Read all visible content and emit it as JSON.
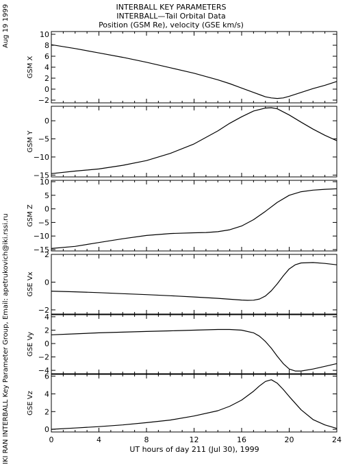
{
  "header": {
    "line1": "INTERBALL KEY PARAMETERS",
    "line2": "INTERBALL—Tail Orbital Data",
    "line3": "Position (GSM Re), velocity (GSE km/s)"
  },
  "side": {
    "date": "Aug 19 1999",
    "credit": "IKI RAN INTERBALL Key Parameter Group, Email: apetrukovich@iki.rssi.ru"
  },
  "chart_data": {
    "type": "line",
    "x_label": "UT hours of day 211 (Jul 30), 1999",
    "x_range": [
      0,
      24
    ],
    "x_ticks": [
      0,
      4,
      8,
      12,
      16,
      20,
      24
    ],
    "x_ticks_labels": [
      "0",
      "4",
      "8",
      "12",
      "16",
      "20",
      "24"
    ],
    "grid": false,
    "panels": [
      {
        "name": "gsm-x",
        "ylabel": "GSM X",
        "ylim": [
          -2.5,
          10.5
        ],
        "yticks": [
          -2,
          0,
          2,
          4,
          6,
          8,
          10
        ],
        "ytick_labels": [
          "−2",
          "0",
          "2",
          "4",
          "6",
          "8",
          "10"
        ],
        "x": [
          0,
          2,
          4,
          6,
          8,
          10,
          12,
          14,
          15,
          16,
          17,
          18,
          18.5,
          19,
          19.5,
          20,
          21,
          22,
          23,
          24
        ],
        "y": [
          8.1,
          7.4,
          6.6,
          5.8,
          4.9,
          3.9,
          2.9,
          1.7,
          1.0,
          0.2,
          -0.6,
          -1.4,
          -1.6,
          -1.7,
          -1.6,
          -1.3,
          -0.6,
          0.1,
          0.7,
          1.4
        ]
      },
      {
        "name": "gsm-y",
        "ylabel": "GSM Y",
        "ylim": [
          -15.5,
          4
        ],
        "yticks": [
          -15,
          -10,
          -5,
          0
        ],
        "ytick_labels": [
          "−15",
          "−10",
          "−5",
          "0"
        ],
        "x": [
          0,
          2,
          4,
          6,
          8,
          10,
          12,
          14,
          15,
          16,
          17,
          18,
          18.5,
          19,
          20,
          21,
          22,
          23,
          24
        ],
        "y": [
          -14.6,
          -13.9,
          -13.3,
          -12.3,
          -11.0,
          -9.0,
          -6.4,
          -2.8,
          -0.7,
          1.1,
          2.7,
          3.5,
          3.6,
          3.3,
          1.6,
          -0.4,
          -2.3,
          -4.0,
          -5.5
        ]
      },
      {
        "name": "gsm-z",
        "ylabel": "GSM Z",
        "ylim": [
          -15.5,
          10.5
        ],
        "yticks": [
          -15,
          -10,
          -5,
          0,
          5,
          10
        ],
        "ytick_labels": [
          "−15",
          "−10",
          "−5",
          "0",
          "5",
          "10"
        ],
        "x": [
          0,
          2,
          4,
          6,
          8,
          10,
          12,
          13,
          14,
          15,
          16,
          17,
          18,
          19,
          20,
          21,
          22,
          23,
          24
        ],
        "y": [
          -14.6,
          -13.8,
          -12.4,
          -11.0,
          -9.8,
          -9.1,
          -8.8,
          -8.7,
          -8.4,
          -7.7,
          -6.3,
          -4.0,
          -0.9,
          2.4,
          5.0,
          6.3,
          6.9,
          7.2,
          7.4
        ]
      },
      {
        "name": "gse-vx",
        "ylabel": "GSE Vx",
        "ylim": [
          -2.3,
          2.0
        ],
        "yticks": [
          -2,
          0,
          2
        ],
        "ytick_labels": [
          "−2",
          "0",
          "2"
        ],
        "x": [
          0,
          2,
          4,
          6,
          8,
          10,
          12,
          14,
          15,
          16,
          16.5,
          17,
          17.5,
          18,
          18.5,
          19,
          19.5,
          20,
          20.5,
          21,
          22,
          23,
          24
        ],
        "y": [
          -0.65,
          -0.7,
          -0.76,
          -0.83,
          -0.9,
          -0.98,
          -1.07,
          -1.17,
          -1.23,
          -1.29,
          -1.31,
          -1.3,
          -1.22,
          -1.0,
          -0.62,
          -0.12,
          0.45,
          0.95,
          1.25,
          1.38,
          1.41,
          1.35,
          1.25
        ]
      },
      {
        "name": "gse-vy",
        "ylabel": "GSE Vy",
        "ylim": [
          -4.5,
          4.3
        ],
        "yticks": [
          -4,
          -2,
          0,
          2,
          4
        ],
        "ytick_labels": [
          "−4",
          "−2",
          "0",
          "2",
          "4"
        ],
        "x": [
          0,
          2,
          4,
          6,
          8,
          10,
          12,
          14,
          15,
          16,
          17,
          17.5,
          18,
          18.5,
          19,
          19.5,
          20,
          20.5,
          21,
          22,
          23,
          24
        ],
        "y": [
          1.3,
          1.45,
          1.6,
          1.7,
          1.8,
          1.9,
          2.0,
          2.1,
          2.1,
          2.0,
          1.6,
          1.1,
          0.3,
          -0.7,
          -1.9,
          -3.0,
          -3.8,
          -4.1,
          -4.1,
          -3.8,
          -3.4,
          -3.0
        ]
      },
      {
        "name": "gse-vz",
        "ylabel": "GSE Vz",
        "ylim": [
          -0.3,
          6.2
        ],
        "yticks": [
          0,
          2,
          4,
          6
        ],
        "ytick_labels": [
          "0",
          "2",
          "4",
          "6"
        ],
        "x": [
          0,
          2,
          4,
          6,
          8,
          10,
          12,
          14,
          15,
          16,
          17,
          17.5,
          18,
          18.5,
          19,
          19.5,
          20,
          21,
          22,
          23,
          24
        ],
        "y": [
          0.0,
          0.15,
          0.3,
          0.5,
          0.75,
          1.05,
          1.5,
          2.1,
          2.6,
          3.3,
          4.3,
          4.9,
          5.4,
          5.6,
          5.2,
          4.5,
          3.7,
          2.2,
          1.1,
          0.5,
          0.1
        ]
      }
    ]
  }
}
